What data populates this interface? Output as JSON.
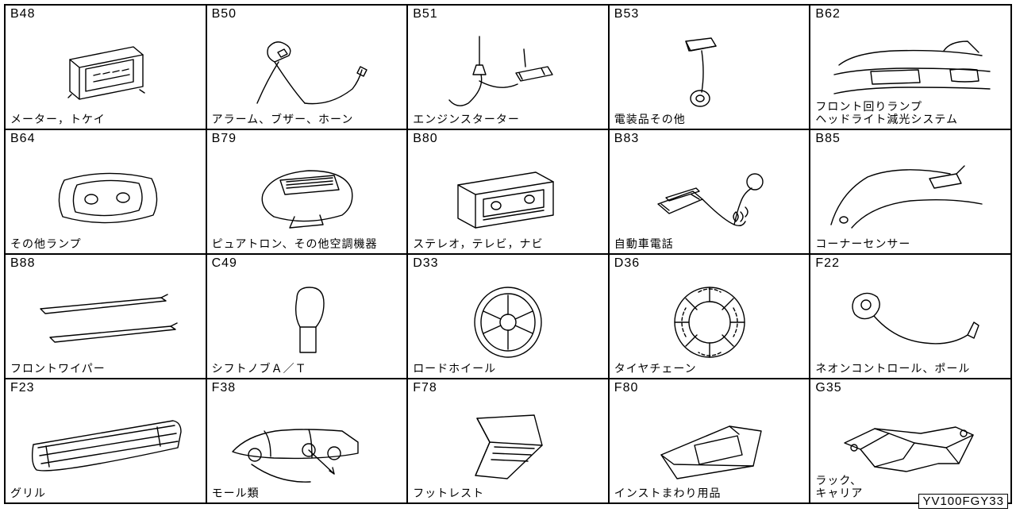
{
  "grid": {
    "rows": 4,
    "cols": 5,
    "border_color": "#000000",
    "background_color": "#ffffff",
    "line_width": 1.4,
    "code_fontsize": 16,
    "caption_fontsize": 14,
    "font_family": "MS Gothic"
  },
  "part_code": "YV100FGY33",
  "cells": [
    {
      "code": "B48",
      "caption": "メーター，トケイ",
      "icon": "clock-meter"
    },
    {
      "code": "B50",
      "caption": "アラーム、ブザー、ホーン",
      "icon": "alarm-buzzer"
    },
    {
      "code": "B51",
      "caption": "エンジンスターター",
      "icon": "engine-starter"
    },
    {
      "code": "B53",
      "caption": "電装品その他",
      "icon": "elec-misc"
    },
    {
      "code": "B62",
      "caption": "フロント回りランプ\nヘッドライト減光システム",
      "icon": "front-lamp"
    },
    {
      "code": "B64",
      "caption": "その他ランプ",
      "icon": "other-lamp"
    },
    {
      "code": "B79",
      "caption": "ピュアトロン、その他空調機器",
      "icon": "puretron"
    },
    {
      "code": "B80",
      "caption": "ステレオ，テレビ，ナビ",
      "icon": "stereo"
    },
    {
      "code": "B83",
      "caption": "自動車電話",
      "icon": "car-phone"
    },
    {
      "code": "B85",
      "caption": "コーナーセンサー",
      "icon": "corner-sensor"
    },
    {
      "code": "B88",
      "caption": "フロントワイパー",
      "icon": "wiper"
    },
    {
      "code": "C49",
      "caption": "シフトノブＡ／Ｔ",
      "icon": "shift-knob"
    },
    {
      "code": "D33",
      "caption": "ロードホイール",
      "icon": "wheel"
    },
    {
      "code": "D36",
      "caption": "タイヤチェーン",
      "icon": "tire-chain"
    },
    {
      "code": "F22",
      "caption": "ネオンコントロール、ポール",
      "icon": "neon-pole"
    },
    {
      "code": "F23",
      "caption": "グリル",
      "icon": "grill"
    },
    {
      "code": "F38",
      "caption": "モール類",
      "icon": "molding"
    },
    {
      "code": "F78",
      "caption": "フットレスト",
      "icon": "footrest"
    },
    {
      "code": "F80",
      "caption": "インストまわり用品",
      "icon": "inst-goods"
    },
    {
      "code": "G35",
      "caption": "ラック、\nキャリア",
      "icon": "rack"
    }
  ]
}
